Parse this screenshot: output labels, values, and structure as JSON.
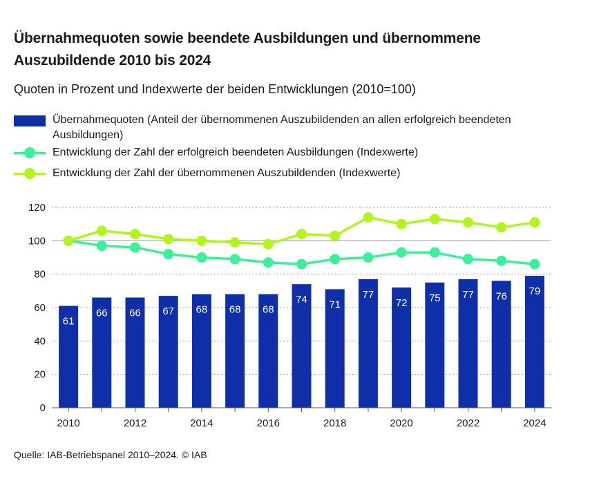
{
  "title": "Übernahmequoten sowie beendete Ausbildungen und übernommene Auszubildende 2010 bis 2024",
  "subtitle": "Quoten in Prozent und Indexwerte der beiden Entwicklungen (2010=100)",
  "legend": [
    {
      "label": "Übernahmequoten (Anteil der übernommenen Auszubildenden an allen erfolgreich beendeten Ausbildungen)",
      "symbol": "bar"
    },
    {
      "label": "Entwicklung der Zahl der erfolgreich beendeten Ausbildungen (Indexwerte)",
      "symbol": "line"
    },
    {
      "label": "Entwicklung der Zahl der übernommenen Auszubildenden (Indexwerte)",
      "symbol": "line"
    }
  ],
  "source": "Quelle: IAB-Betriebspanel 2010–2024.  © IAB",
  "colors": {
    "bars": "#0f2fa8",
    "beendete": "#3cf09a",
    "uebernommene": "#b2f51e",
    "grid": "#9a9a9a"
  },
  "chart_data": {
    "type": "bar+line",
    "x": [
      2010,
      2011,
      2012,
      2013,
      2014,
      2015,
      2016,
      2017,
      2018,
      2019,
      2020,
      2021,
      2022,
      2023,
      2024
    ],
    "x_tick_labels": [
      "2010",
      "2012",
      "2014",
      "2016",
      "2018",
      "2020",
      "2022",
      "2024"
    ],
    "ylim": [
      0,
      120
    ],
    "y_ticks": [
      0,
      20,
      40,
      60,
      80,
      100,
      120
    ],
    "grid": true,
    "series": [
      {
        "name": "Übernahmequoten",
        "type": "bar",
        "values": [
          61,
          66,
          66,
          67,
          68,
          68,
          68,
          74,
          71,
          77,
          72,
          75,
          77,
          76,
          79
        ]
      },
      {
        "name": "Entwicklung der Zahl der erfolgreich beendeten Ausbildungen (Indexwerte)",
        "type": "line",
        "values": [
          100,
          97,
          96,
          92,
          90,
          89,
          87,
          86,
          89,
          90,
          93,
          93,
          89,
          88,
          86
        ]
      },
      {
        "name": "Entwicklung der Zahl der übernommenen Auszubildenden (Indexwerte)",
        "type": "line",
        "values": [
          100,
          106,
          104,
          101,
          100,
          99,
          98,
          104,
          103,
          114,
          110,
          113,
          111,
          108,
          111
        ]
      }
    ]
  }
}
